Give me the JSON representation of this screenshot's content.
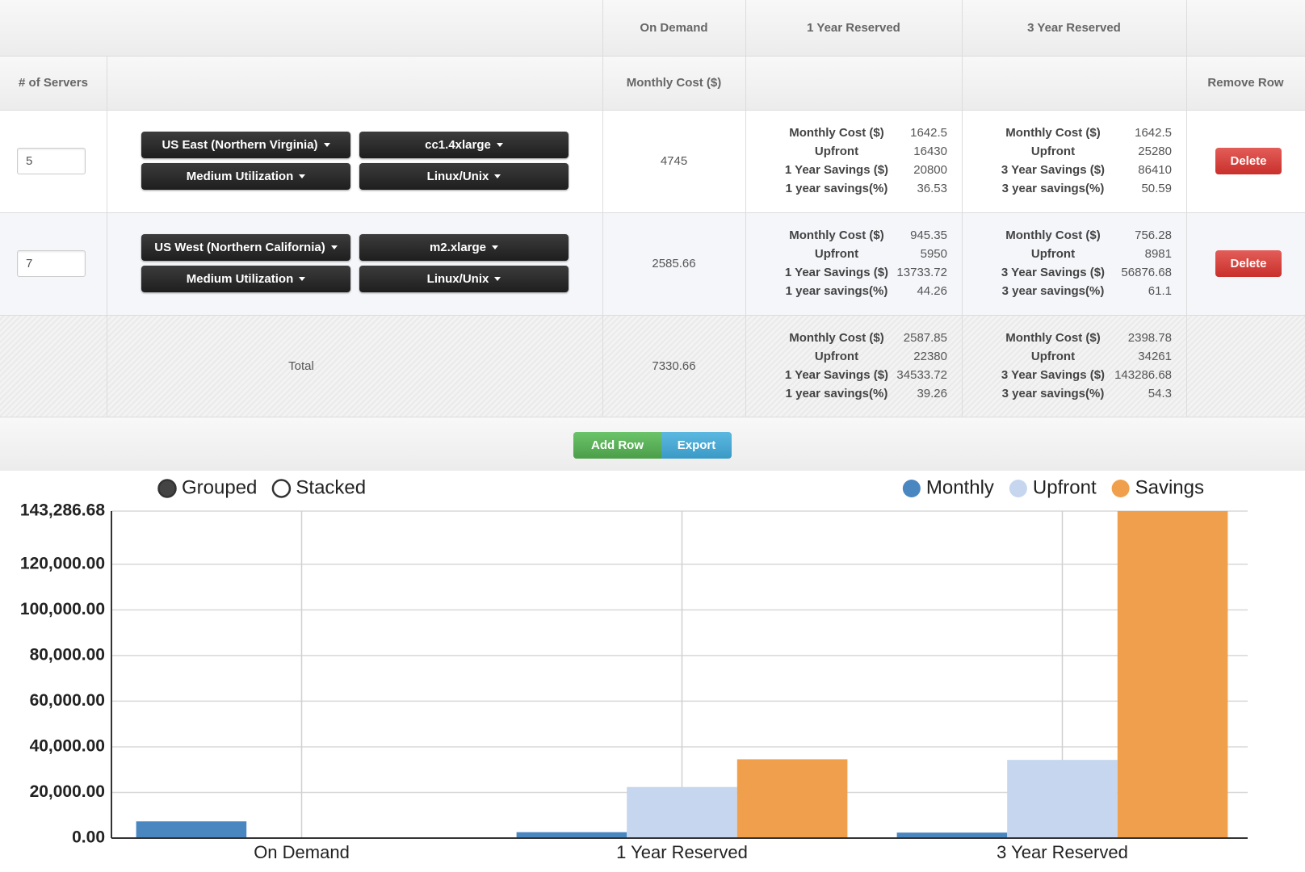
{
  "table": {
    "column_groups": [
      "On Demand",
      "1 Year Reserved",
      "3 Year Reserved"
    ],
    "columns": [
      "# of Servers",
      "Monthly Cost ($)",
      "Remove Row"
    ],
    "rows": [
      {
        "servers": "5",
        "region": "US East (Northern Virginia)",
        "instance": "cc1.4xlarge",
        "utilization": "Medium Utilization",
        "os": "Linux/Unix",
        "on_demand": "4745",
        "one_year": [
          [
            "Monthly Cost ($)",
            "1642.5"
          ],
          [
            "Upfront",
            "16430"
          ],
          [
            "1 Year Savings ($)",
            "20800"
          ],
          [
            "1 year savings(%)",
            "36.53"
          ]
        ],
        "three_year": [
          [
            "Monthly Cost ($)",
            "1642.5"
          ],
          [
            "Upfront",
            "25280"
          ],
          [
            "3 Year Savings ($)",
            "86410"
          ],
          [
            "3 year savings(%)",
            "50.59"
          ]
        ],
        "action": "Delete"
      },
      {
        "servers": "7",
        "region": "US West (Northern California)",
        "instance": "m2.xlarge",
        "utilization": "Medium Utilization",
        "os": "Linux/Unix",
        "on_demand": "2585.66",
        "one_year": [
          [
            "Monthly Cost ($)",
            "945.35"
          ],
          [
            "Upfront",
            "5950"
          ],
          [
            "1 Year Savings ($)",
            "13733.72"
          ],
          [
            "1 year savings(%)",
            "44.26"
          ]
        ],
        "three_year": [
          [
            "Monthly Cost ($)",
            "756.28"
          ],
          [
            "Upfront",
            "8981"
          ],
          [
            "3 Year Savings ($)",
            "56876.68"
          ],
          [
            "3 year savings(%)",
            "61.1"
          ]
        ],
        "action": "Delete"
      }
    ],
    "total": {
      "label": "Total",
      "on_demand": "7330.66",
      "one_year": [
        [
          "Monthly Cost ($)",
          "2587.85"
        ],
        [
          "Upfront",
          "22380"
        ],
        [
          "1 Year Savings ($)",
          "34533.72"
        ],
        [
          "1 year savings(%)",
          "39.26"
        ]
      ],
      "three_year": [
        [
          "Monthly Cost ($)",
          "2398.78"
        ],
        [
          "Upfront",
          "34261"
        ],
        [
          "3 Year Savings ($)",
          "143286.68"
        ],
        [
          "3 year savings(%)",
          "54.3"
        ]
      ]
    }
  },
  "buttons": [
    "Add Row",
    "Export"
  ],
  "chart_controls": {
    "modes": [
      "Grouped",
      "Stacked"
    ],
    "selected": 0
  },
  "chart_data": {
    "type": "bar",
    "categories": [
      "On Demand",
      "1 Year Reserved",
      "3 Year Reserved"
    ],
    "series": [
      {
        "name": "Monthly",
        "color": "#4a86c0",
        "values": [
          7330.66,
          2587.85,
          2398.78
        ]
      },
      {
        "name": "Upfront",
        "color": "#c5d6ee",
        "values": [
          0,
          22380,
          34261
        ]
      },
      {
        "name": "Savings",
        "color": "#f0a04c",
        "values": [
          0,
          34533.72,
          143286.68
        ]
      }
    ],
    "ylim": [
      0,
      143286.68
    ],
    "yticks": [
      {
        "value": 0,
        "label": "0.00"
      },
      {
        "value": 20000,
        "label": "20,000.00"
      },
      {
        "value": 40000,
        "label": "40,000.00"
      },
      {
        "value": 60000,
        "label": "60,000.00"
      },
      {
        "value": 80000,
        "label": "80,000.00"
      },
      {
        "value": 100000,
        "label": "100,000.00"
      },
      {
        "value": 120000,
        "label": "120,000.00"
      },
      {
        "value": 143286.68,
        "label": "143,286.68"
      }
    ],
    "grid": true,
    "legend": "top-right"
  }
}
